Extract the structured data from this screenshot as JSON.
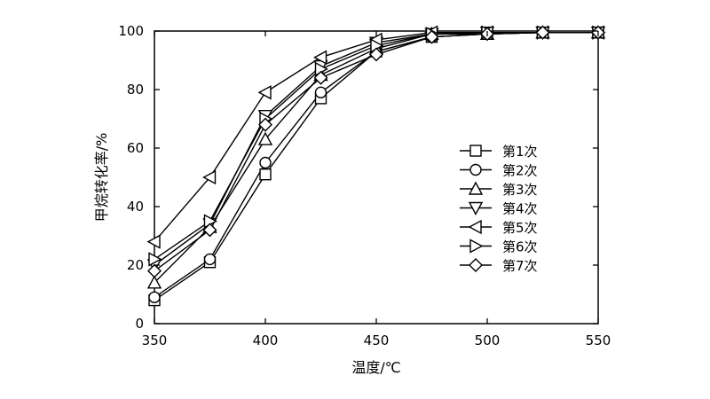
{
  "chart_data": {
    "type": "line",
    "xlabel": "温度/℃",
    "ylabel": "甲烷转化率/%",
    "xlim": [
      350,
      550
    ],
    "ylim": [
      0,
      100
    ],
    "x_ticks": [
      "350",
      "400",
      "450",
      "500",
      "550"
    ],
    "y_ticks": [
      "0",
      "20",
      "40",
      "60",
      "80",
      "100"
    ],
    "grid": false,
    "legend_position": "right",
    "x": [
      350,
      375,
      400,
      425,
      450,
      475,
      500,
      525,
      550
    ],
    "series": [
      {
        "name": "第1次",
        "marker": "square",
        "values": [
          8,
          21,
          51,
          77,
          93,
          98,
          99,
          99.5,
          99.5
        ]
      },
      {
        "name": "第2次",
        "marker": "circle",
        "values": [
          9,
          22,
          55,
          79,
          93,
          98,
          99,
          99.5,
          99.5
        ]
      },
      {
        "name": "第3次",
        "marker": "triangle-up",
        "values": [
          14,
          33,
          63,
          85,
          94,
          99,
          99,
          99.5,
          99.5
        ]
      },
      {
        "name": "第4次",
        "marker": "triangle-down",
        "values": [
          20,
          34,
          71,
          88,
          96,
          99,
          99.5,
          99.5,
          99.5
        ]
      },
      {
        "name": "第5次",
        "marker": "triangle-left",
        "values": [
          28,
          50,
          79,
          91,
          97,
          99.5,
          99.5,
          99.5,
          99.5
        ]
      },
      {
        "name": "第6次",
        "marker": "triangle-right",
        "values": [
          22,
          35,
          70,
          87,
          95,
          99,
          99.5,
          99.5,
          99.5
        ]
      },
      {
        "name": "第7次",
        "marker": "diamond",
        "values": [
          18,
          32,
          68,
          84,
          92,
          98,
          99,
          99.5,
          99.5
        ]
      }
    ]
  }
}
